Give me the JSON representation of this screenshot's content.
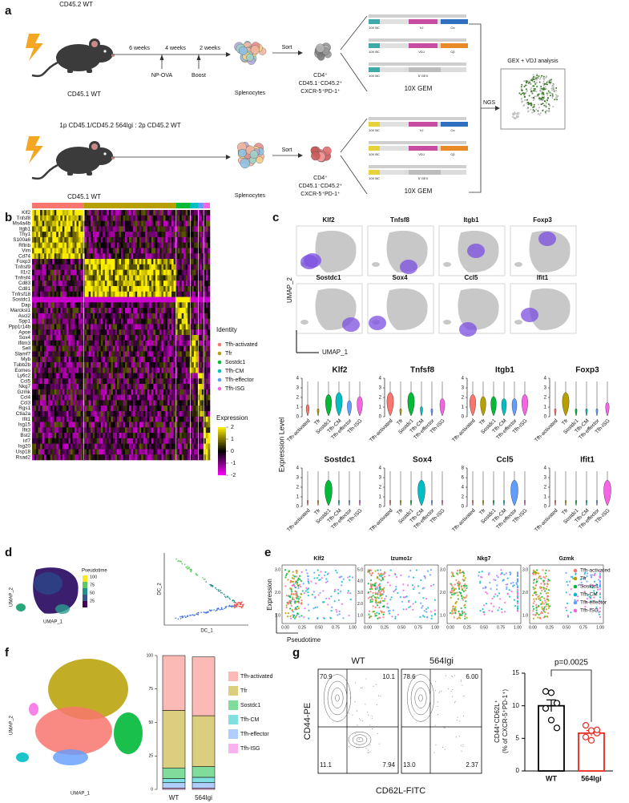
{
  "panel_a": {
    "label": "a",
    "top": {
      "donor": "CD45.2 WT",
      "recipient": "CD45.1 WT",
      "intervals": [
        "6 weeks",
        "4 weeks",
        "2 weeks"
      ],
      "events": [
        "NP-OVA",
        "Boost"
      ],
      "cells": "Splenocytes",
      "sort": "Sort",
      "sorted": [
        "CD4⁺",
        "CD45.1⁻CD45.2⁺",
        "CXCR-5⁺PD-1⁺"
      ],
      "gem": "10X GEM"
    },
    "bottom": {
      "donor": "1p CD45.1/CD45.2 564Igi : 2p CD45.2 WT",
      "recipient": "CD45.1 WT",
      "cells": "Splenocytes",
      "sort": "Sort",
      "sorted": [
        "CD4⁺",
        "CD45.1⁻CD45.2⁺",
        "CXCR-5⁺PD-1⁺"
      ],
      "gem": "10X GEM"
    },
    "constructs": [
      [
        "10X BC",
        "VJ",
        "Cα"
      ],
      [
        "10X BC",
        "VDJ",
        "Cβ"
      ],
      [
        "10X BC",
        "5' GEX"
      ]
    ],
    "ngs": "NGS",
    "analysis": "GEX + VDJ analysis"
  },
  "identities": [
    {
      "name": "Tfh-activated",
      "color": "#f8766d"
    },
    {
      "name": "Tfr",
      "color": "#b79f00"
    },
    {
      "name": "Sostdc1",
      "color": "#00ba38"
    },
    {
      "name": "Tfh-CM",
      "color": "#00bfc4"
    },
    {
      "name": "Tfh-effector",
      "color": "#619cff"
    },
    {
      "name": "Tfh-ISG",
      "color": "#f564e3"
    }
  ],
  "panel_b": {
    "label": "b",
    "genes": [
      "Klf2",
      "Tnfsf8",
      "Ms4a4b",
      "Itgb1",
      "Thy1",
      "S100a6",
      "Rflnb",
      "Vim",
      "Cd74",
      "Foxp3",
      "Tnfrsf9",
      "Il1r2",
      "Tnfrsf4",
      "Cd83",
      "Cd81",
      "Tnfrsf18",
      "Sostdc1",
      "Dap",
      "Marcksl1",
      "Ascl2",
      "Spp1",
      "Ppp1r14b",
      "Apoe",
      "Sox4",
      "Ifitm3",
      "Sell",
      "Slamf7",
      "Myb",
      "Tubb2b",
      "Eomes",
      "Ly6c2",
      "Ccl5",
      "Nkg7",
      "Gzmk",
      "Ccl4",
      "Ccl3",
      "Rgs1",
      "Ctla2a",
      "Ifit1",
      "Isg15",
      "Ifit3",
      "Bst2",
      "Irf7",
      "Isg20",
      "Usp18",
      "Rsad2"
    ],
    "legend_title": "Identity",
    "scale_title": "Expression",
    "scale_ticks": [
      2,
      1,
      0,
      -1,
      -2
    ]
  },
  "panel_c": {
    "label": "c",
    "genes": [
      "Klf2",
      "Tnfsf8",
      "Itgb1",
      "Foxp3",
      "Sostdc1",
      "Sox4",
      "Ccl5",
      "Ifit1"
    ],
    "umap_x": "UMAP_1",
    "umap_y": "UMAP_2",
    "violin_y": "Expression Level",
    "violin_yticks": [
      [
        0,
        1,
        2,
        3,
        4
      ],
      [
        0,
        1,
        2,
        3,
        4
      ],
      [
        0,
        1,
        2,
        3,
        4
      ],
      [
        0,
        1,
        2,
        3,
        4
      ],
      [
        0,
        1,
        2,
        3,
        4
      ],
      [
        0,
        1,
        2,
        3,
        4
      ],
      [
        0,
        2,
        4,
        6,
        8
      ],
      [
        0,
        1,
        2,
        3,
        4
      ]
    ]
  },
  "panel_d": {
    "label": "d",
    "legend_title": "Pseudotime",
    "legend_ticks": [
      100,
      75,
      50,
      25
    ],
    "umap_x": "UMAP_1",
    "umap_y": "UMAP_2",
    "dc_x": "DC_1",
    "dc_y": "DC_2"
  },
  "panel_e": {
    "label": "e",
    "genes": [
      "Klf2",
      "Izumo1r",
      "Nkg7",
      "Gzmk"
    ],
    "y_title": "Expression",
    "x_title": "Pseudotime",
    "xticks": [
      "0.00",
      "0.25",
      "0.50",
      "0.75",
      "1.00"
    ],
    "yticks": [
      [
        "1.0",
        "2.0",
        "3.0"
      ],
      [
        "1.0",
        "2.0",
        "3.0",
        "4.0",
        "5.0"
      ],
      [
        "1.0",
        "2.0",
        "3.0"
      ],
      [
        "1.0",
        "2.0",
        "3.0"
      ]
    ]
  },
  "panel_f": {
    "label": "f",
    "umap_x": "UMAP_1",
    "umap_y": "UMAP_2",
    "groups": [
      "WT",
      "564Igi"
    ],
    "ylim": [
      0,
      100
    ],
    "yticks": [
      0,
      25,
      50,
      75,
      100
    ],
    "proportions": [
      [
        41,
        43,
        8,
        3,
        4,
        1
      ],
      [
        44,
        38,
        8,
        4,
        4,
        1
      ]
    ]
  },
  "panel_g": {
    "label": "g",
    "groups": [
      "WT",
      "564Igi"
    ],
    "quadrants": [
      [
        "70.9",
        "10.1",
        "11.1",
        "7.94"
      ],
      [
        "78.6",
        "6.00",
        "13.0",
        "2.37"
      ]
    ],
    "flow_y": "CD44-PE",
    "flow_x": "CD62L-FITC",
    "bar_y": [
      "CD44⁺CD62L⁺",
      "(% of CXCR-5⁺PD-1⁺)"
    ],
    "pvalue": "p=0.0025",
    "ylim": [
      0,
      15
    ],
    "yticks": [
      0,
      5,
      10,
      15
    ],
    "means": [
      10,
      5.8
    ],
    "sem": [
      0.9,
      0.4
    ],
    "points": [
      [
        12.2,
        12.0,
        10.4,
        9.6,
        7.8,
        6.6
      ],
      [
        7.0,
        6.2,
        5.8,
        5.2,
        4.7,
        6.3
      ]
    ],
    "colors": [
      "#000000",
      "#e8281e"
    ]
  }
}
